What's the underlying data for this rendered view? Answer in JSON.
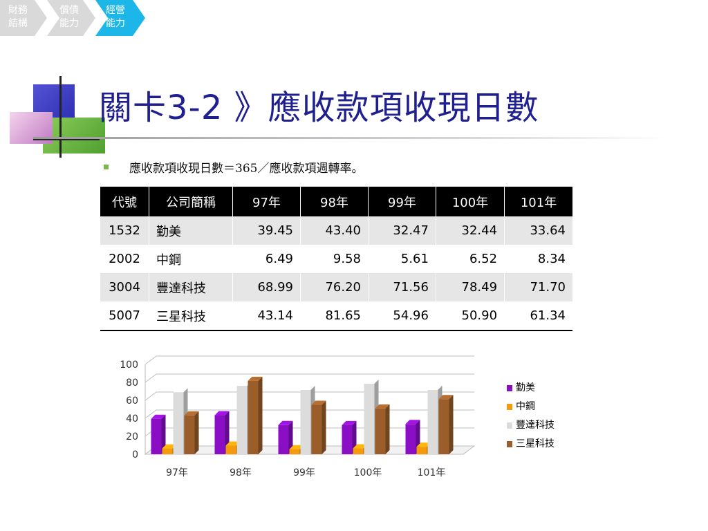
{
  "breadcrumb": {
    "items": [
      {
        "label": "財務\n結構",
        "active": false
      },
      {
        "label": "償債\n能力",
        "active": false
      },
      {
        "label": "經營\n能力",
        "active": true
      }
    ]
  },
  "colors": {
    "crumb_inactive": "#d9d9d9",
    "crumb_active": "#1cb6e8",
    "title": "#1f1f8f",
    "bullet": "#7ab648"
  },
  "title": "關卡3-2 》應收款項收現日數",
  "bullet": "應收款項收現日數＝365／應收款項週轉率。",
  "table": {
    "headers": [
      "代號",
      "公司簡稱",
      "97年",
      "98年",
      "99年",
      "100年",
      "101年"
    ],
    "rows": [
      [
        "1532",
        "勤美",
        "39.45",
        "43.40",
        "32.47",
        "32.44",
        "33.64"
      ],
      [
        "2002",
        "中鋼",
        "6.49",
        "9.58",
        "5.61",
        "6.52",
        "8.34"
      ],
      [
        "3004",
        "豐達科技",
        "68.99",
        "76.20",
        "71.56",
        "78.49",
        "71.70"
      ],
      [
        "5007",
        "三星科技",
        "43.14",
        "81.65",
        "54.96",
        "50.90",
        "61.34"
      ]
    ]
  },
  "chart_data": {
    "type": "bar",
    "categories": [
      "97年",
      "98年",
      "99年",
      "100年",
      "101年"
    ],
    "series": [
      {
        "name": "勤美",
        "color": "#8a0fc4",
        "values": [
          39.45,
          43.4,
          32.47,
          32.44,
          33.64
        ]
      },
      {
        "name": "中鋼",
        "color": "#f59a0b",
        "values": [
          6.49,
          9.58,
          5.61,
          6.52,
          8.34
        ]
      },
      {
        "name": "豐達科技",
        "color": "#dcdcdc",
        "values": [
          68.99,
          76.2,
          71.56,
          78.49,
          71.7
        ]
      },
      {
        "name": "三星科技",
        "color": "#9b5e2a",
        "values": [
          43.14,
          81.65,
          54.96,
          50.9,
          61.34
        ]
      }
    ],
    "yticks": [
      0,
      20,
      40,
      60,
      80,
      100
    ],
    "ylim": [
      0,
      100
    ],
    "grid": true,
    "legend": "right"
  }
}
